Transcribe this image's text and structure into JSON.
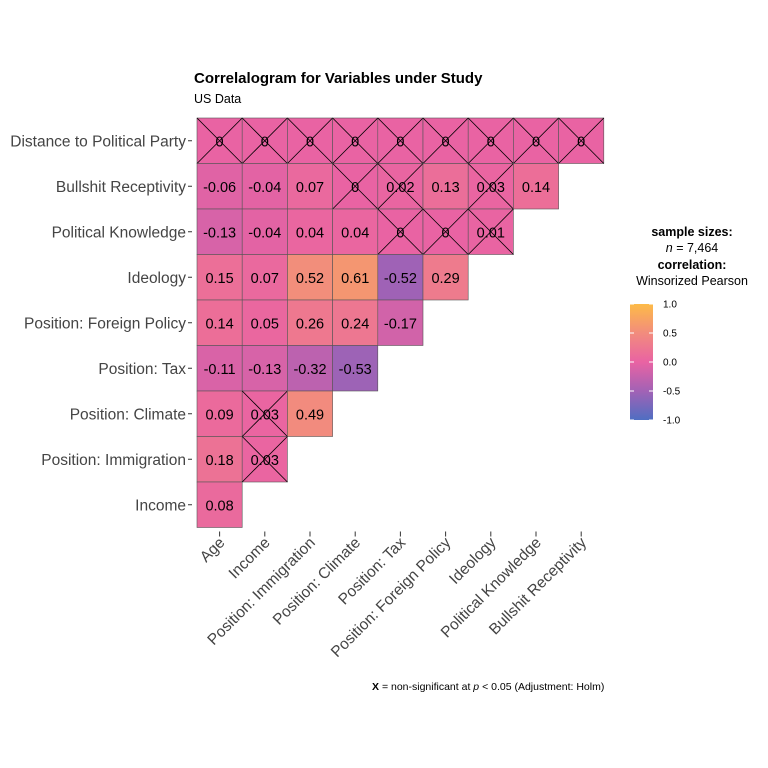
{
  "title": "Correlalogram for Variables under Study",
  "subtitle": "US Data",
  "legend": {
    "sample_heading": "sample sizes:",
    "n_symbol": "n",
    "n_value": "= 7,464",
    "corr_heading": "correlation:",
    "corr_method": "Winsorized Pearson",
    "ticks": [
      "1.0",
      "0.5",
      "0.0",
      "-0.5",
      "-1.0"
    ],
    "colors": [
      "#FDBB47",
      "#F28C7D",
      "#E963A3",
      "#A262B5",
      "#4F6EC2"
    ]
  },
  "caption": {
    "x_mark": "X",
    "text_before": "= non-significant at",
    "p_symbol": "p",
    "text_after": "< 0.05 (Adjustment: Holm)"
  },
  "chart_data": {
    "type": "heatmap",
    "x_categories": [
      "Age",
      "Income",
      "Position: Immigration",
      "Position: Climate",
      "Position: Tax",
      "Position: Foreign Policy",
      "Ideology",
      "Political Knowledge",
      "Bullshit Receptivity"
    ],
    "y_categories": [
      "Distance to Political Party",
      "Bullshit Receptivity",
      "Political Knowledge",
      "Ideology",
      "Position: Foreign Policy",
      "Position: Tax",
      "Position: Climate",
      "Position: Immigration",
      "Income"
    ],
    "value_range": [
      -1,
      1
    ],
    "rows": [
      {
        "values": [
          0,
          0,
          0,
          0,
          0,
          0,
          0,
          0,
          0
        ],
        "nonsignificant": [
          true,
          true,
          true,
          true,
          true,
          true,
          true,
          true,
          true
        ]
      },
      {
        "values": [
          -0.06,
          -0.04,
          0.07,
          0,
          0.02,
          0.13,
          0.03,
          0.14
        ],
        "nonsignificant": [
          false,
          false,
          false,
          true,
          true,
          false,
          true,
          false
        ]
      },
      {
        "values": [
          -0.13,
          -0.04,
          0.04,
          0.04,
          0,
          0,
          0.01
        ],
        "nonsignificant": [
          false,
          false,
          false,
          false,
          true,
          true,
          true
        ]
      },
      {
        "values": [
          0.15,
          0.07,
          0.52,
          0.61,
          -0.52,
          0.29
        ],
        "nonsignificant": [
          false,
          false,
          false,
          false,
          false,
          false
        ]
      },
      {
        "values": [
          0.14,
          0.05,
          0.26,
          0.24,
          -0.17
        ],
        "nonsignificant": [
          false,
          false,
          false,
          false,
          false
        ]
      },
      {
        "values": [
          -0.11,
          -0.13,
          -0.32,
          -0.53
        ],
        "nonsignificant": [
          false,
          false,
          false,
          false
        ]
      },
      {
        "values": [
          0.09,
          0.03,
          0.49
        ],
        "nonsignificant": [
          false,
          true,
          false
        ]
      },
      {
        "values": [
          0.18,
          0.03
        ],
        "nonsignificant": [
          false,
          true
        ]
      },
      {
        "values": [
          0.08
        ],
        "nonsignificant": [
          false
        ]
      }
    ],
    "labels": [
      [
        "0",
        "0",
        "0",
        "0",
        "0",
        "0",
        "0",
        "0",
        "0"
      ],
      [
        "-0.06",
        "-0.04",
        "0.07",
        "0",
        "0.02",
        "0.13",
        "0.03",
        "0.14"
      ],
      [
        "-0.13",
        "-0.04",
        "0.04",
        "0.04",
        "0",
        "0",
        "0.01"
      ],
      [
        "0.15",
        "0.07",
        "0.52",
        "0.61",
        "-0.52",
        "0.29"
      ],
      [
        "0.14",
        "0.05",
        "0.26",
        "0.24",
        "-0.17"
      ],
      [
        "-0.11",
        "-0.13",
        "-0.32",
        "-0.53"
      ],
      [
        "0.09",
        "0.03",
        "0.49"
      ],
      [
        "0.18",
        "0.03"
      ],
      [
        "0.08"
      ]
    ]
  }
}
